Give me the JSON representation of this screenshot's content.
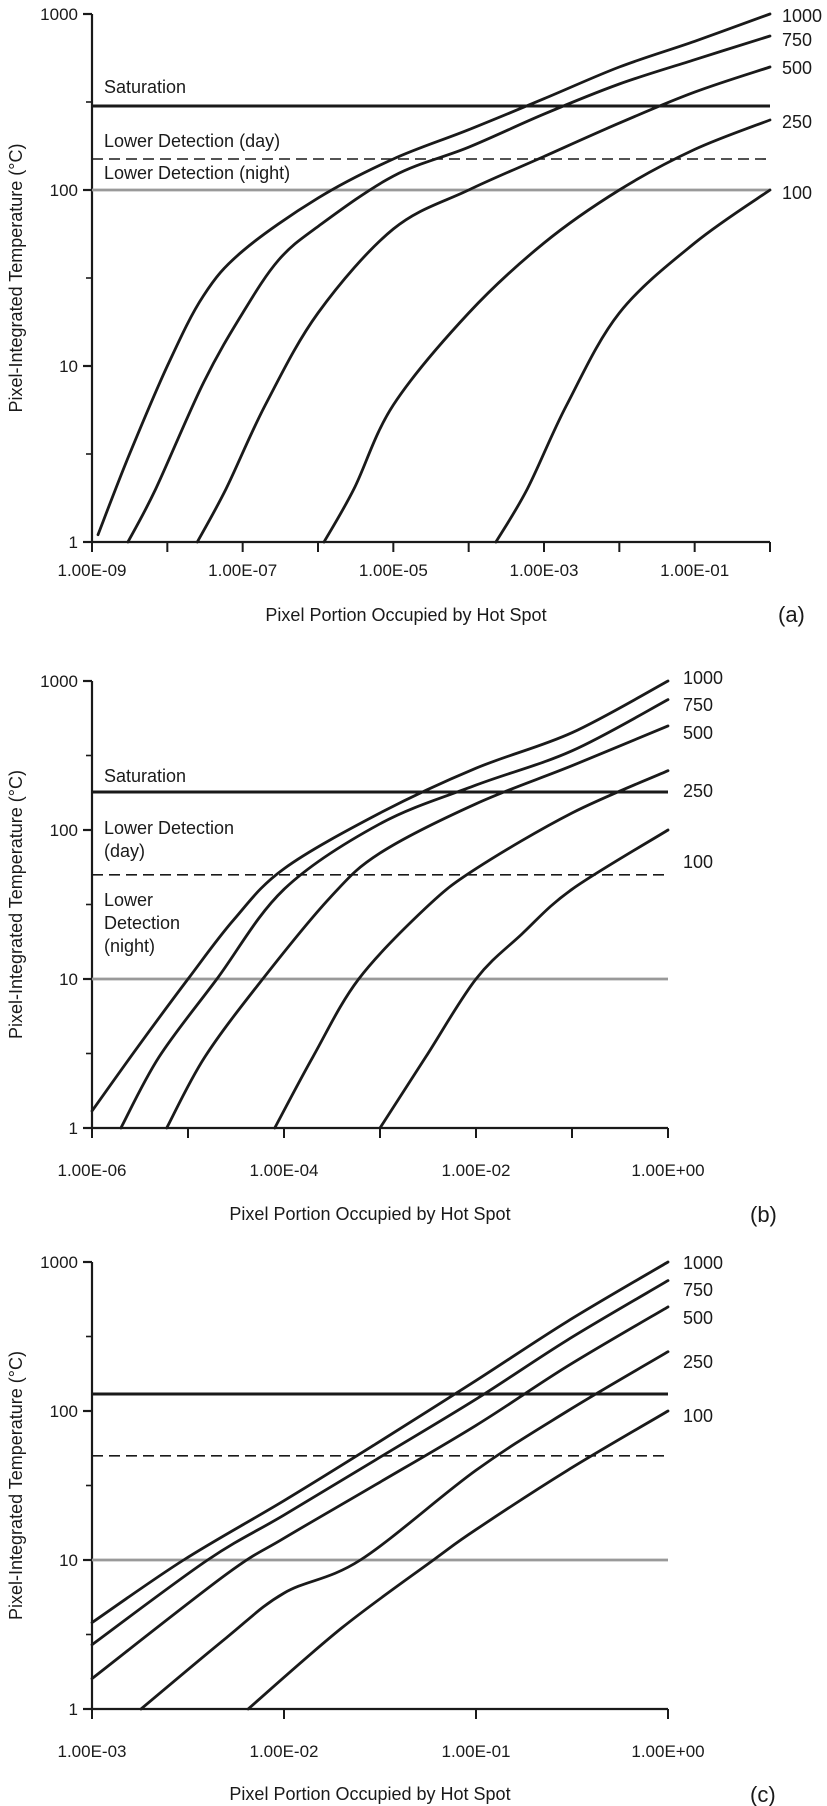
{
  "chart_data": [
    {
      "type": "line",
      "panel_label": "(a)",
      "xlabel": "Pixel Portion Occupied by Hot Spot",
      "ylabel": "Pixel-Integrated Temperature (°C)",
      "x_scale": "log",
      "y_scale": "log",
      "xlim": [
        1e-09,
        1
      ],
      "ylim": [
        1,
        1000
      ],
      "x_ticks": [
        {
          "value": 1e-09,
          "label": "1.00E-09"
        },
        {
          "value": 1e-07,
          "label": "1.00E-07"
        },
        {
          "value": 1e-05,
          "label": "1.00E-05"
        },
        {
          "value": 0.001,
          "label": "1.00E-03"
        },
        {
          "value": 0.1,
          "label": "1.00E-01"
        }
      ],
      "y_ticks": [
        {
          "value": 1,
          "label": "1"
        },
        {
          "value": 10,
          "label": "10"
        },
        {
          "value": 100,
          "label": "100"
        },
        {
          "value": 1000,
          "label": "1000"
        }
      ],
      "grid": false,
      "series": [
        {
          "name": "1000",
          "points": [
            [
              1.2e-09,
              1.1
            ],
            [
              3e-09,
              3
            ],
            [
              1e-08,
              10
            ],
            [
              3e-08,
              25
            ],
            [
              1e-07,
              45
            ],
            [
              1e-06,
              90
            ],
            [
              1e-05,
              150
            ],
            [
              0.0001,
              220
            ],
            [
              0.001,
              330
            ],
            [
              0.01,
              500
            ],
            [
              0.1,
              700
            ],
            [
              1,
              1000
            ]
          ]
        },
        {
          "name": "750",
          "points": [
            [
              3e-09,
              1
            ],
            [
              7e-09,
              2
            ],
            [
              3e-08,
              8
            ],
            [
              1e-07,
              20
            ],
            [
              3e-07,
              40
            ],
            [
              1e-06,
              62
            ],
            [
              1e-05,
              120
            ],
            [
              0.0001,
              175
            ],
            [
              0.001,
              270
            ],
            [
              0.01,
              400
            ],
            [
              0.1,
              550
            ],
            [
              1,
              750
            ]
          ]
        },
        {
          "name": "500",
          "points": [
            [
              2.5e-08,
              1
            ],
            [
              6e-08,
              2
            ],
            [
              2e-07,
              6
            ],
            [
              1e-06,
              20
            ],
            [
              1e-05,
              60
            ],
            [
              0.0001,
              100
            ],
            [
              0.001,
              155
            ],
            [
              0.01,
              240
            ],
            [
              0.1,
              360
            ],
            [
              1,
              500
            ]
          ]
        },
        {
          "name": "250",
          "points": [
            [
              1.2e-06,
              1
            ],
            [
              3e-06,
              2
            ],
            [
              1e-05,
              6
            ],
            [
              0.0001,
              20
            ],
            [
              0.001,
              50
            ],
            [
              0.01,
              100
            ],
            [
              0.1,
              170
            ],
            [
              1,
              250
            ]
          ]
        },
        {
          "name": "100",
          "points": [
            [
              0.00023,
              1
            ],
            [
              0.0006,
              2
            ],
            [
              0.002,
              6
            ],
            [
              0.01,
              20
            ],
            [
              0.1,
              50
            ],
            [
              1,
              100
            ]
          ]
        }
      ],
      "reference_lines": [
        {
          "label": "Saturation",
          "y": 300,
          "style": "solid-dark"
        },
        {
          "label": "Lower Detection (day)",
          "y": 150,
          "style": "dashed"
        },
        {
          "label": "Lower Detection (night)",
          "y": 100,
          "style": "solid-gray"
        }
      ]
    },
    {
      "type": "line",
      "panel_label": "(b)",
      "xlabel": "Pixel Portion Occupied by Hot Spot",
      "ylabel": "Pixel-Integrated Temperature (°C)",
      "x_scale": "log",
      "y_scale": "log",
      "xlim": [
        1e-06,
        1
      ],
      "ylim": [
        1,
        1000
      ],
      "x_ticks": [
        {
          "value": 1e-06,
          "label": "1.00E-06"
        },
        {
          "value": 0.0001,
          "label": "1.00E-04"
        },
        {
          "value": 0.01,
          "label": "1.00E-02"
        },
        {
          "value": 1,
          "label": "1.00E+00"
        }
      ],
      "y_ticks": [
        {
          "value": 1,
          "label": "1"
        },
        {
          "value": 10,
          "label": "10"
        },
        {
          "value": 100,
          "label": "100"
        },
        {
          "value": 1000,
          "label": "1000"
        }
      ],
      "grid": false,
      "series": [
        {
          "name": "1000",
          "points": [
            [
              1e-06,
              1.3
            ],
            [
              3e-06,
              3.5
            ],
            [
              1e-05,
              10
            ],
            [
              3e-05,
              25
            ],
            [
              0.0001,
              55
            ],
            [
              0.001,
              130
            ],
            [
              0.01,
              260
            ],
            [
              0.1,
              450
            ],
            [
              1,
              1000
            ]
          ]
        },
        {
          "name": "750",
          "points": [
            [
              2e-06,
              1
            ],
            [
              5e-06,
              3
            ],
            [
              2e-05,
              10
            ],
            [
              0.0001,
              40
            ],
            [
              0.001,
              110
            ],
            [
              0.01,
              200
            ],
            [
              0.1,
              340
            ],
            [
              1,
              750
            ]
          ]
        },
        {
          "name": "500",
          "points": [
            [
              6e-06,
              1
            ],
            [
              1.5e-05,
              3
            ],
            [
              6e-05,
              10
            ],
            [
              0.0003,
              35
            ],
            [
              0.001,
              70
            ],
            [
              0.01,
              150
            ],
            [
              0.1,
              270
            ],
            [
              1,
              500
            ]
          ]
        },
        {
          "name": "250",
          "points": [
            [
              8e-05,
              1
            ],
            [
              0.0002,
              3
            ],
            [
              0.0006,
              10
            ],
            [
              0.003,
              30
            ],
            [
              0.01,
              55
            ],
            [
              0.1,
              130
            ],
            [
              1,
              250
            ]
          ]
        },
        {
          "name": "100",
          "points": [
            [
              0.001,
              1
            ],
            [
              0.003,
              3
            ],
            [
              0.01,
              10
            ],
            [
              0.03,
              20
            ],
            [
              0.1,
              40
            ],
            [
              1,
              100
            ]
          ]
        }
      ],
      "reference_lines": [
        {
          "label": "Saturation",
          "y": 180,
          "style": "solid-dark"
        },
        {
          "label": "Lower Detection (day)",
          "y": 50,
          "style": "dashed"
        },
        {
          "label": "Lower Detection (night)",
          "y": 10,
          "style": "solid-gray"
        }
      ]
    },
    {
      "type": "line",
      "panel_label": "(c)",
      "xlabel": "Pixel Portion Occupied by Hot Spot",
      "ylabel": "Pixel-Integrated Temperature (°C)",
      "x_scale": "log",
      "y_scale": "log",
      "xlim": [
        0.001,
        1
      ],
      "ylim": [
        1,
        1000
      ],
      "x_ticks": [
        {
          "value": 0.001,
          "label": "1.00E-03"
        },
        {
          "value": 0.01,
          "label": "1.00E-02"
        },
        {
          "value": 0.1,
          "label": "1.00E-01"
        },
        {
          "value": 1,
          "label": "1.00E+00"
        }
      ],
      "y_ticks": [
        {
          "value": 1,
          "label": "1"
        },
        {
          "value": 10,
          "label": "10"
        },
        {
          "value": 100,
          "label": "100"
        },
        {
          "value": 1000,
          "label": "1000"
        }
      ],
      "grid": false,
      "series": [
        {
          "name": "1000",
          "points": [
            [
              0.001,
              3.8
            ],
            [
              0.003,
              10
            ],
            [
              0.01,
              25
            ],
            [
              0.03,
              60
            ],
            [
              0.1,
              160
            ],
            [
              0.3,
              400
            ],
            [
              1,
              1000
            ]
          ]
        },
        {
          "name": "750",
          "points": [
            [
              0.001,
              2.7
            ],
            [
              0.004,
              10
            ],
            [
              0.01,
              20
            ],
            [
              0.03,
              47
            ],
            [
              0.1,
              120
            ],
            [
              0.3,
              300
            ],
            [
              1,
              750
            ]
          ]
        },
        {
          "name": "500",
          "points": [
            [
              0.001,
              1.6
            ],
            [
              0.005,
              8
            ],
            [
              0.01,
              14
            ],
            [
              0.03,
              32
            ],
            [
              0.1,
              80
            ],
            [
              0.3,
              200
            ],
            [
              1,
              500
            ]
          ]
        },
        {
          "name": "250",
          "points": [
            [
              0.0018,
              1
            ],
            [
              0.005,
              3
            ],
            [
              0.01,
              6
            ],
            [
              0.025,
              10
            ],
            [
              0.1,
              40
            ],
            [
              0.3,
              100
            ],
            [
              1,
              250
            ]
          ]
        },
        {
          "name": "100",
          "points": [
            [
              0.0065,
              1
            ],
            [
              0.02,
              3.5
            ],
            [
              0.06,
              10
            ],
            [
              0.1,
              16
            ],
            [
              0.3,
              40
            ],
            [
              1,
              100
            ]
          ]
        }
      ],
      "reference_lines": [
        {
          "label": "",
          "y": 130,
          "style": "solid-dark"
        },
        {
          "label": "",
          "y": 50,
          "style": "dashed"
        },
        {
          "label": "",
          "y": 10,
          "style": "solid-gray"
        }
      ]
    }
  ],
  "colors": {
    "curve": "#1a1a1a",
    "saturation_line": "#1a1a1a",
    "day_line": "#1a1a1a",
    "night_line": "#999999",
    "axis": "#1a1a1a"
  },
  "panel_texts": [
    {
      "series_labels": [
        "1000",
        "750",
        "500",
        "250",
        "100"
      ],
      "ref_labels": [
        [
          "Saturation"
        ],
        [
          "Lower Detection (day)"
        ],
        [
          "Lower Detection (night)"
        ]
      ]
    },
    {
      "series_labels": [
        "1000",
        "750",
        "500",
        "250",
        "100"
      ],
      "ref_labels": [
        [
          "Saturation"
        ],
        [
          "Lower Detection",
          "(day)"
        ],
        [
          "Lower",
          "Detection",
          "(night)"
        ]
      ]
    },
    {
      "series_labels": [
        "1000",
        "750",
        "500",
        "250",
        "100"
      ],
      "ref_labels": []
    }
  ]
}
